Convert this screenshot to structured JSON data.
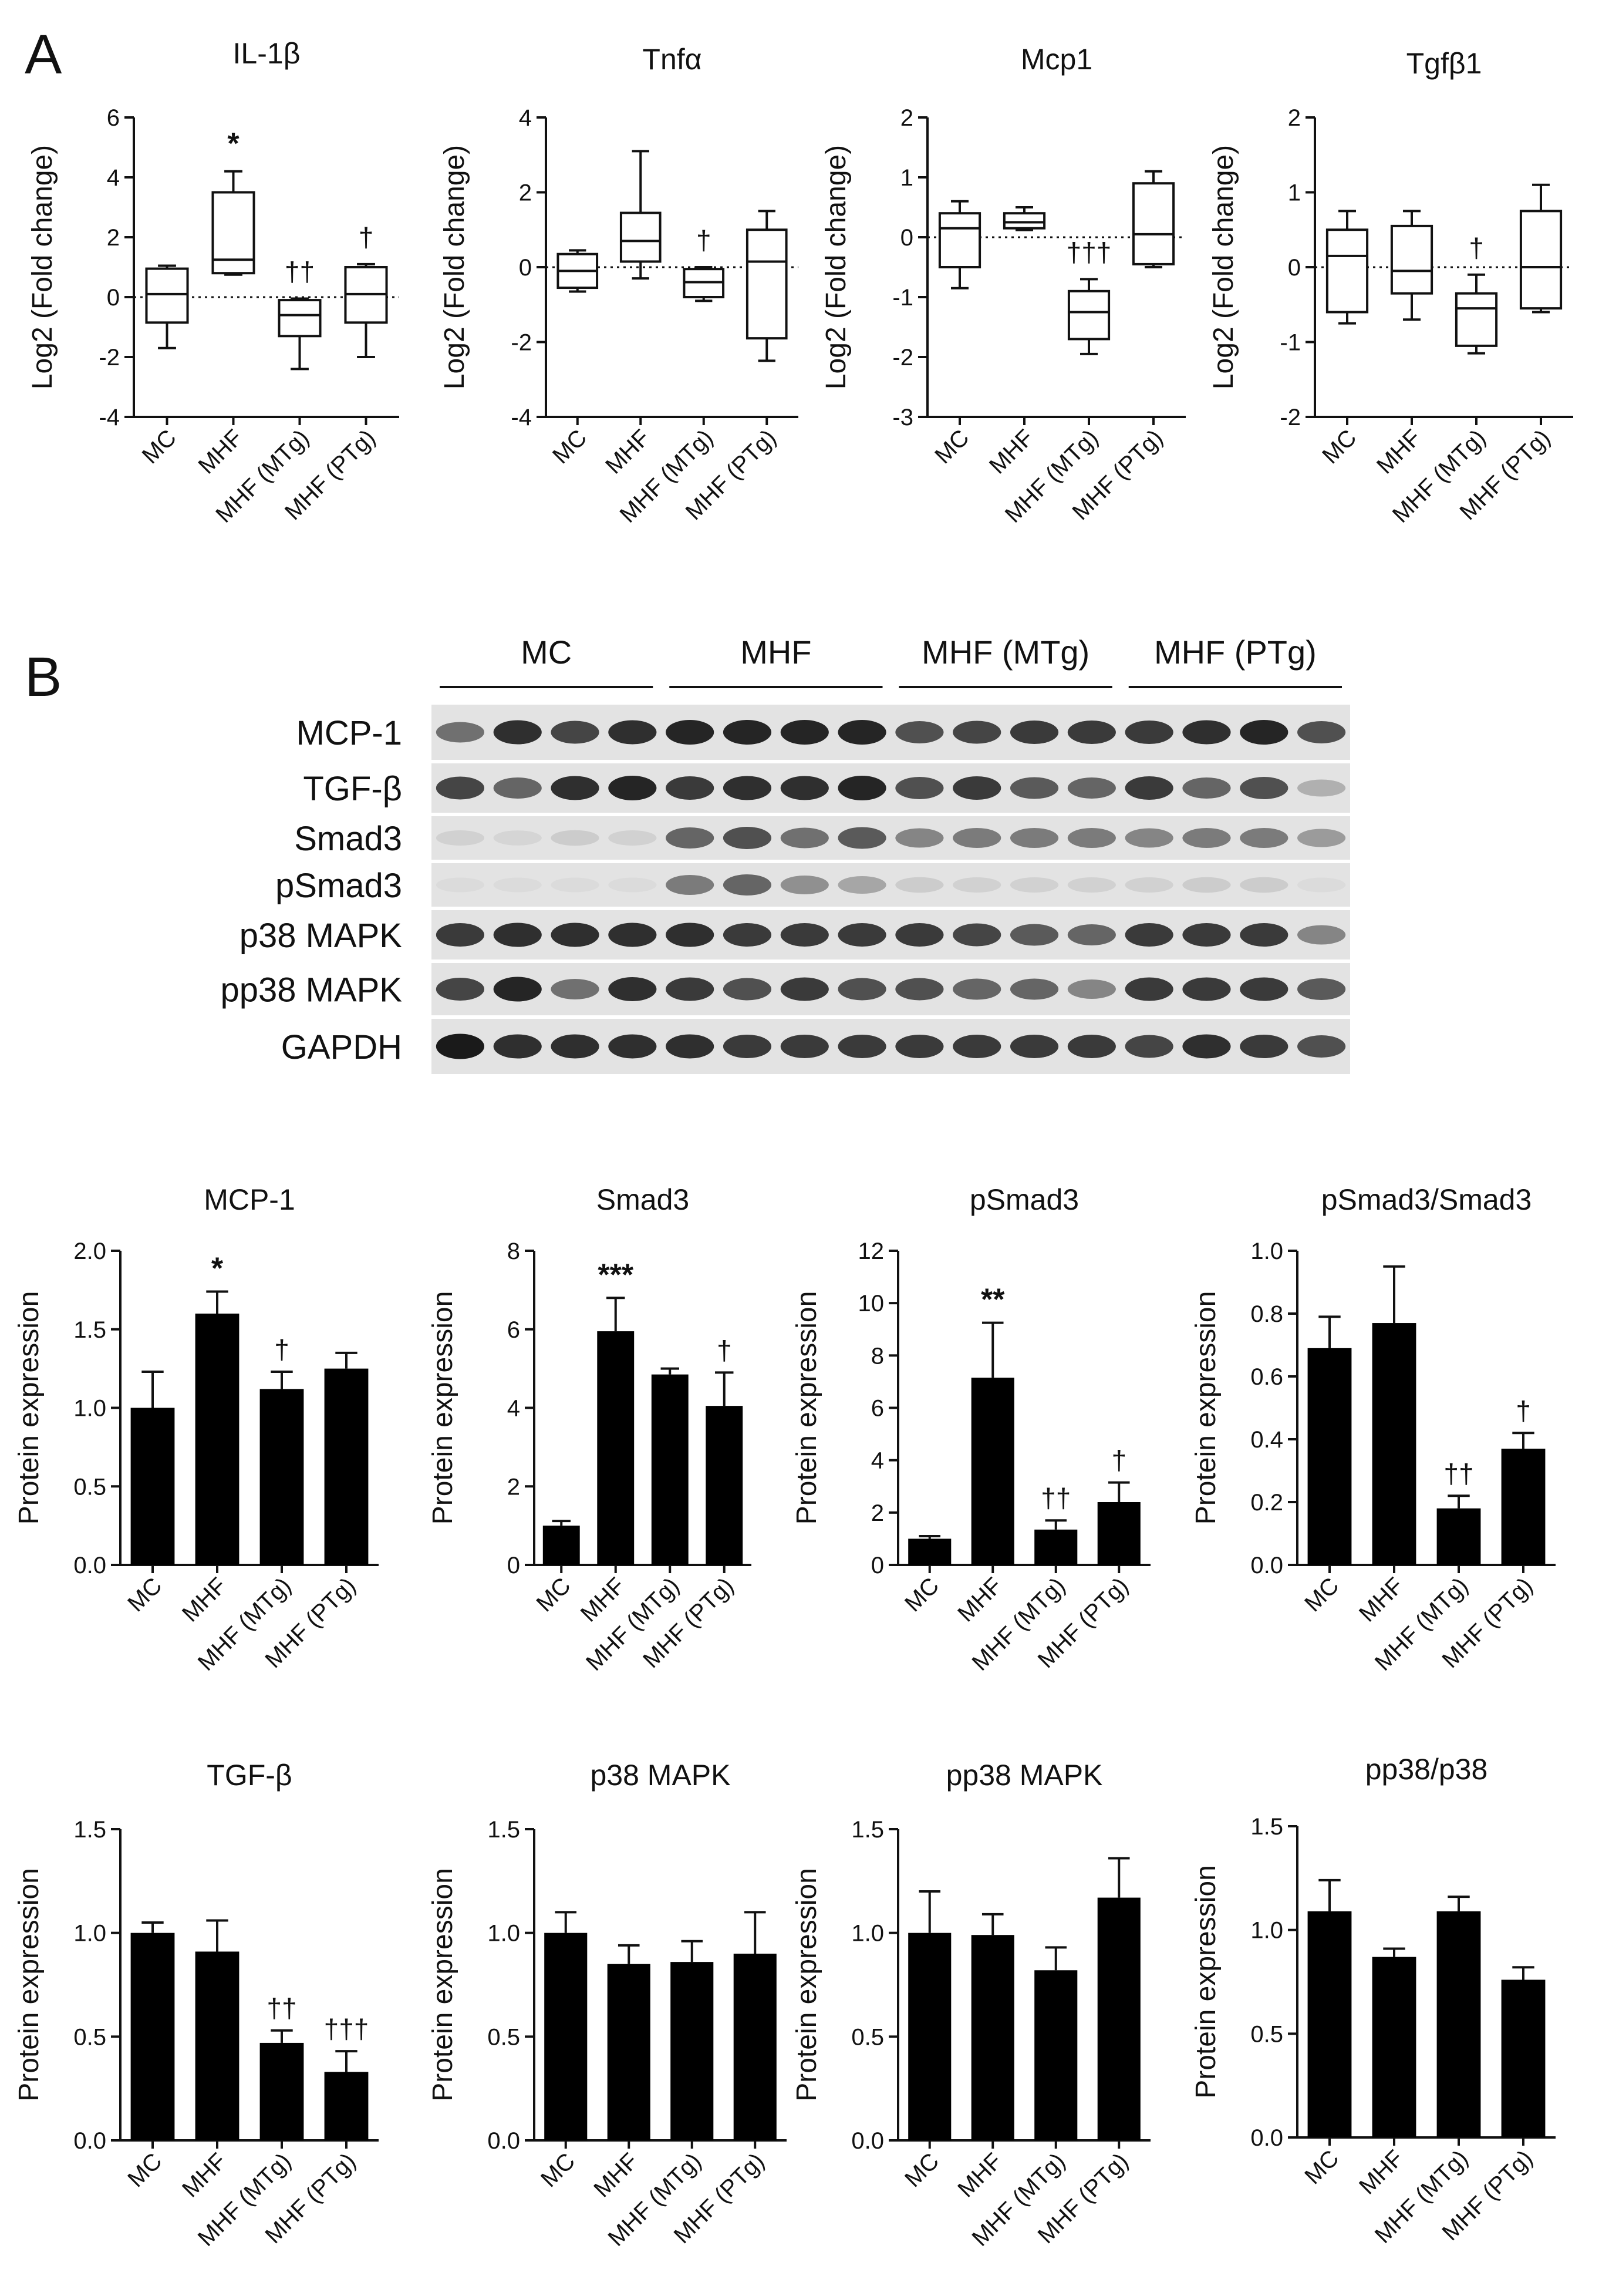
{
  "panels": {
    "a": "A",
    "b": "B"
  },
  "categories": [
    "MC",
    "MHF",
    "MHF (MTg)",
    "MHF (PTg)"
  ],
  "box_ylabel": "Log2 (Fold change)",
  "bar_ylabel": "Protein expression",
  "blot": {
    "groups": [
      "MC",
      "MHF",
      "MHF (MTg)",
      "MHF (PTg)"
    ],
    "rows": [
      "MCP-1",
      "TGF-β",
      "Smad3",
      "pSmad3",
      "p38 MAPK",
      "pp38 MAPK",
      "GAPDH"
    ],
    "intensity": [
      [
        0.55,
        0.85,
        0.75,
        0.85,
        0.9,
        0.9,
        0.9,
        0.9,
        0.7,
        0.75,
        0.8,
        0.8,
        0.8,
        0.85,
        0.9,
        0.7
      ],
      [
        0.75,
        0.6,
        0.85,
        0.9,
        0.8,
        0.85,
        0.85,
        0.9,
        0.7,
        0.8,
        0.65,
        0.6,
        0.8,
        0.6,
        0.7,
        0.25
      ],
      [
        0.1,
        0.08,
        0.12,
        0.1,
        0.6,
        0.7,
        0.55,
        0.65,
        0.45,
        0.5,
        0.5,
        0.5,
        0.45,
        0.5,
        0.5,
        0.35
      ],
      [
        0.05,
        0.05,
        0.05,
        0.05,
        0.5,
        0.6,
        0.4,
        0.3,
        0.12,
        0.1,
        0.1,
        0.1,
        0.1,
        0.12,
        0.12,
        0.05
      ],
      [
        0.8,
        0.85,
        0.85,
        0.85,
        0.85,
        0.8,
        0.8,
        0.8,
        0.8,
        0.75,
        0.65,
        0.6,
        0.8,
        0.8,
        0.8,
        0.45
      ],
      [
        0.75,
        0.9,
        0.55,
        0.85,
        0.8,
        0.7,
        0.8,
        0.7,
        0.7,
        0.6,
        0.6,
        0.45,
        0.8,
        0.8,
        0.8,
        0.65
      ],
      [
        0.95,
        0.85,
        0.85,
        0.85,
        0.85,
        0.8,
        0.8,
        0.8,
        0.8,
        0.8,
        0.8,
        0.8,
        0.75,
        0.85,
        0.8,
        0.7
      ]
    ]
  },
  "chart_data": [
    {
      "type": "box",
      "title": "IL-1β",
      "ylabel": "Log2 (Fold change)",
      "ylim": [
        -4,
        6
      ],
      "yticks": [
        "-4",
        "-2",
        "0",
        "2",
        "4",
        "6"
      ],
      "reference_line": 0,
      "boxes": [
        {
          "min": -1.7,
          "q1": -0.85,
          "median": 0.1,
          "q3": 0.95,
          "max": 1.05,
          "mark": ""
        },
        {
          "min": 0.75,
          "q1": 0.8,
          "median": 1.25,
          "q3": 3.5,
          "max": 4.2,
          "mark": "*"
        },
        {
          "min": -2.4,
          "q1": -1.3,
          "median": -0.6,
          "q3": -0.1,
          "max": -0.05,
          "mark": "††"
        },
        {
          "min": -2.0,
          "q1": -0.85,
          "median": 0.1,
          "q3": 1.0,
          "max": 1.1,
          "mark": "†"
        }
      ]
    },
    {
      "type": "box",
      "title": "Tnfα",
      "ylabel": "Log2 (Fold change)",
      "ylim": [
        -4,
        4
      ],
      "yticks": [
        "-4",
        "-2",
        "0",
        "2",
        "4"
      ],
      "reference_line": 0,
      "boxes": [
        {
          "min": -0.65,
          "q1": -0.55,
          "median": -0.1,
          "q3": 0.35,
          "max": 0.45,
          "mark": ""
        },
        {
          "min": -0.3,
          "q1": 0.15,
          "median": 0.7,
          "q3": 1.45,
          "max": 3.1,
          "mark": ""
        },
        {
          "min": -0.9,
          "q1": -0.8,
          "median": -0.4,
          "q3": -0.05,
          "max": 0.0,
          "mark": "†"
        },
        {
          "min": -2.5,
          "q1": -1.9,
          "median": 0.15,
          "q3": 1.0,
          "max": 1.5,
          "mark": ""
        }
      ]
    },
    {
      "type": "box",
      "title": "Mcp1",
      "ylabel": "Log2 (Fold change)",
      "ylim": [
        -3,
        2
      ],
      "yticks": [
        "-3",
        "-2",
        "-1",
        "0",
        "1",
        "2"
      ],
      "reference_line": 0,
      "boxes": [
        {
          "min": -0.85,
          "q1": -0.5,
          "median": 0.15,
          "q3": 0.4,
          "max": 0.6,
          "mark": ""
        },
        {
          "min": 0.12,
          "q1": 0.15,
          "median": 0.25,
          "q3": 0.4,
          "max": 0.5,
          "mark": ""
        },
        {
          "min": -1.95,
          "q1": -1.7,
          "median": -1.25,
          "q3": -0.9,
          "max": -0.7,
          "mark": "†††"
        },
        {
          "min": -0.5,
          "q1": -0.45,
          "median": 0.05,
          "q3": 0.9,
          "max": 1.1,
          "mark": ""
        }
      ]
    },
    {
      "type": "box",
      "title": "Tgfβ1",
      "ylabel": "Log2 (Fold change)",
      "ylim": [
        -2,
        2
      ],
      "yticks": [
        "-2",
        "-1",
        "0",
        "1",
        "2"
      ],
      "reference_line": 0,
      "boxes": [
        {
          "min": -0.75,
          "q1": -0.6,
          "median": 0.15,
          "q3": 0.5,
          "max": 0.75,
          "mark": ""
        },
        {
          "min": -0.7,
          "q1": -0.35,
          "median": -0.05,
          "q3": 0.55,
          "max": 0.75,
          "mark": ""
        },
        {
          "min": -1.15,
          "q1": -1.05,
          "median": -0.55,
          "q3": -0.35,
          "max": -0.1,
          "mark": "†"
        },
        {
          "min": -0.6,
          "q1": -0.55,
          "median": 0.0,
          "q3": 0.75,
          "max": 1.1,
          "mark": ""
        }
      ]
    },
    {
      "type": "bar",
      "title": "MCP-1",
      "ylabel": "Protein expression",
      "ylim": [
        0,
        2.0
      ],
      "yticks": [
        "0.0",
        "0.5",
        "1.0",
        "1.5",
        "2.0"
      ],
      "values": [
        1.0,
        1.6,
        1.12,
        1.25
      ],
      "errors": [
        0.23,
        0.14,
        0.11,
        0.1
      ],
      "marks": [
        "",
        "*",
        "†",
        ""
      ]
    },
    {
      "type": "bar",
      "title": "Smad3",
      "ylabel": "Protein expression",
      "ylim": [
        0,
        8
      ],
      "yticks": [
        "0",
        "2",
        "4",
        "6",
        "8"
      ],
      "values": [
        1.0,
        5.95,
        4.85,
        4.05
      ],
      "errors": [
        0.12,
        0.85,
        0.15,
        0.85
      ],
      "marks": [
        "",
        "***",
        "",
        "†"
      ]
    },
    {
      "type": "bar",
      "title": "pSmad3",
      "ylabel": "Protein expression",
      "ylim": [
        0,
        12
      ],
      "yticks": [
        "0",
        "2",
        "4",
        "6",
        "8",
        "10",
        "12"
      ],
      "values": [
        1.0,
        7.15,
        1.35,
        2.4
      ],
      "errors": [
        0.1,
        2.1,
        0.35,
        0.75
      ],
      "marks": [
        "",
        "**",
        "††",
        "†"
      ]
    },
    {
      "type": "bar",
      "title": "pSmad3/Smad3",
      "ylabel": "Protein expression",
      "ylim": [
        0,
        1.0
      ],
      "yticks": [
        "0.0",
        "0.2",
        "0.4",
        "0.6",
        "0.8",
        "1.0"
      ],
      "values": [
        0.69,
        0.77,
        0.18,
        0.37
      ],
      "errors": [
        0.1,
        0.18,
        0.04,
        0.05
      ],
      "marks": [
        "",
        "",
        "††",
        "†"
      ]
    },
    {
      "type": "bar",
      "title": "TGF-β",
      "ylabel": "Protein expression",
      "ylim": [
        0,
        1.5
      ],
      "yticks": [
        "0.0",
        "0.5",
        "1.0",
        "1.5"
      ],
      "values": [
        1.0,
        0.91,
        0.47,
        0.33
      ],
      "errors": [
        0.05,
        0.15,
        0.06,
        0.1
      ],
      "marks": [
        "",
        "",
        "††",
        "†††"
      ]
    },
    {
      "type": "bar",
      "title": "p38 MAPK",
      "ylabel": "Protein expression",
      "ylim": [
        0,
        1.5
      ],
      "yticks": [
        "0.0",
        "0.5",
        "1.0",
        "1.5"
      ],
      "values": [
        1.0,
        0.85,
        0.86,
        0.9
      ],
      "errors": [
        0.1,
        0.09,
        0.1,
        0.2
      ],
      "marks": [
        "",
        "",
        "",
        ""
      ]
    },
    {
      "type": "bar",
      "title": "pp38 MAPK",
      "ylabel": "Protein expression",
      "ylim": [
        0,
        1.5
      ],
      "yticks": [
        "0.0",
        "0.5",
        "1.0",
        "1.5"
      ],
      "values": [
        1.0,
        0.99,
        0.82,
        1.17
      ],
      "errors": [
        0.2,
        0.1,
        0.11,
        0.19
      ],
      "marks": [
        "",
        "",
        "",
        ""
      ]
    },
    {
      "type": "bar",
      "title": "pp38/p38",
      "ylabel": "Protein expression",
      "ylim": [
        0,
        1.5
      ],
      "yticks": [
        "0.0",
        "0.5",
        "1.0",
        "1.5"
      ],
      "values": [
        1.09,
        0.87,
        1.09,
        0.76
      ],
      "errors": [
        0.15,
        0.04,
        0.07,
        0.06
      ],
      "marks": [
        "",
        "",
        "",
        ""
      ]
    }
  ]
}
